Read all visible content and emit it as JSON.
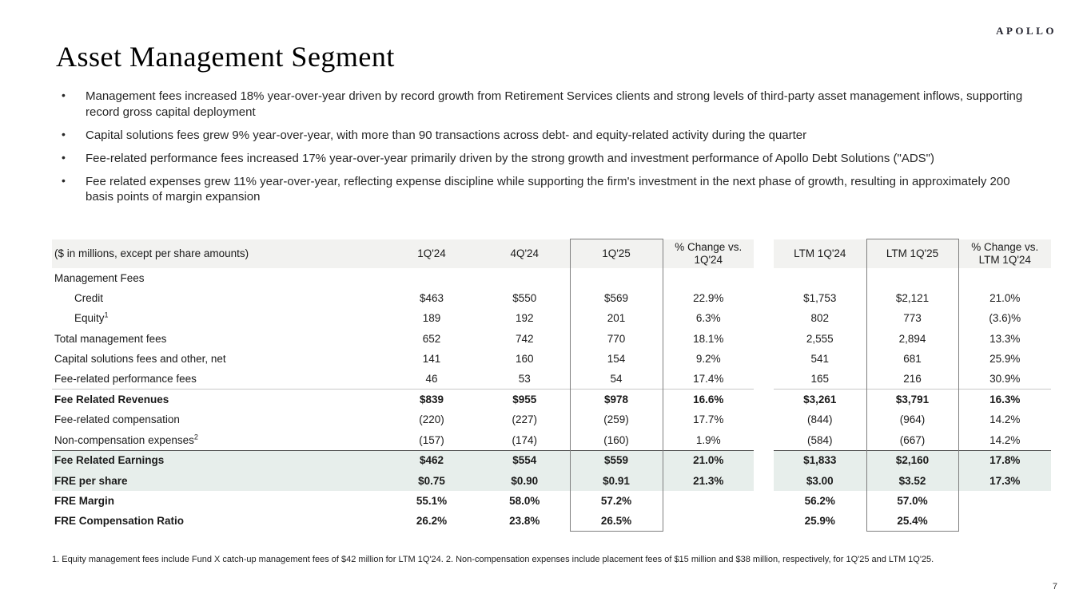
{
  "brand": {
    "logo": "APOLLO"
  },
  "title": "Asset Management Segment",
  "ui": {
    "bullet_char": "•"
  },
  "bullets": [
    "Management fees increased 18% year-over-year driven by record growth from Retirement Services clients and strong levels of third-party asset management inflows, supporting record gross capital deployment",
    "Capital solutions fees grew 9% year-over-year, with more than 90 transactions across debt- and equity-related activity during the quarter",
    "Fee-related performance fees increased 17% year-over-year primarily driven by the strong growth and investment performance of Apollo Debt Solutions (\"ADS\")",
    "Fee related expenses grew 11% year-over-year, reflecting expense discipline while supporting the firm's investment in the next phase of growth, resulting in approximately 200 basis points of margin expansion"
  ],
  "table": {
    "columns": [
      "($ in millions, except per share amounts)",
      "1Q'24",
      "4Q'24",
      "1Q'25",
      "% Change vs. 1Q'24",
      "LTM 1Q'24",
      "LTM 1Q'25",
      "% Change vs. LTM 1Q'24"
    ],
    "rows": [
      {
        "label": "Management Fees",
        "values": [
          "",
          "",
          "",
          "",
          "",
          "",
          ""
        ]
      },
      {
        "label": "Credit",
        "indent": true,
        "values": [
          "$463",
          "$550",
          "$569",
          "22.9%",
          "$1,753",
          "$2,121",
          "21.0%"
        ]
      },
      {
        "label": "Equity",
        "sup": "1",
        "indent": true,
        "values": [
          "189",
          "192",
          "201",
          "6.3%",
          "802",
          "773",
          "(3.6)%"
        ]
      },
      {
        "label": "Total management fees",
        "values": [
          "652",
          "742",
          "770",
          "18.1%",
          "2,555",
          "2,894",
          "13.3%"
        ]
      },
      {
        "label": "Capital solutions fees and other, net",
        "values": [
          "141",
          "160",
          "154",
          "9.2%",
          "541",
          "681",
          "25.9%"
        ]
      },
      {
        "label": "Fee-related performance fees",
        "values": [
          "46",
          "53",
          "54",
          "17.4%",
          "165",
          "216",
          "30.9%"
        ]
      },
      {
        "label": "Fee Related Revenues",
        "bold": true,
        "line": "light",
        "values": [
          "$839",
          "$955",
          "$978",
          "16.6%",
          "$3,261",
          "$3,791",
          "16.3%"
        ]
      },
      {
        "label": "Fee-related compensation",
        "values": [
          "(220)",
          "(227)",
          "(259)",
          "17.7%",
          "(844)",
          "(964)",
          "14.2%"
        ]
      },
      {
        "label": "Non-compensation expenses",
        "sup": "2",
        "values": [
          "(157)",
          "(174)",
          "(160)",
          "1.9%",
          "(584)",
          "(667)",
          "14.2%"
        ]
      },
      {
        "label": "Fee Related Earnings",
        "bold": true,
        "highlight": true,
        "line": "dark",
        "values": [
          "$462",
          "$554",
          "$559",
          "21.0%",
          "$1,833",
          "$2,160",
          "17.8%"
        ]
      },
      {
        "label": "FRE per share",
        "bold": true,
        "highlight": true,
        "values": [
          "$0.75",
          "$0.90",
          "$0.91",
          "21.3%",
          "$3.00",
          "$3.52",
          "17.3%"
        ]
      },
      {
        "label": "FRE Margin",
        "bold": true,
        "values": [
          "55.1%",
          "58.0%",
          "57.2%",
          "",
          "56.2%",
          "57.0%",
          ""
        ]
      },
      {
        "label": "FRE Compensation Ratio",
        "bold": true,
        "values": [
          "26.2%",
          "23.8%",
          "26.5%",
          "",
          "25.9%",
          "25.4%",
          ""
        ]
      }
    ]
  },
  "footnote": "1. Equity management fees include Fund X catch-up management fees of $42 million for LTM 1Q'24. 2. Non-compensation expenses include placement fees of $15 million and $38 million, respectively, for 1Q'25 and LTM 1Q'25.",
  "page": {
    "number": "7"
  },
  "colors": {
    "header_bg": "#f2f2f0",
    "highlight_bg": "#e7eeeb",
    "box_border": "#7f7f7f",
    "dark_line": "#4d4d4d",
    "light_line": "#c9c9c9"
  }
}
